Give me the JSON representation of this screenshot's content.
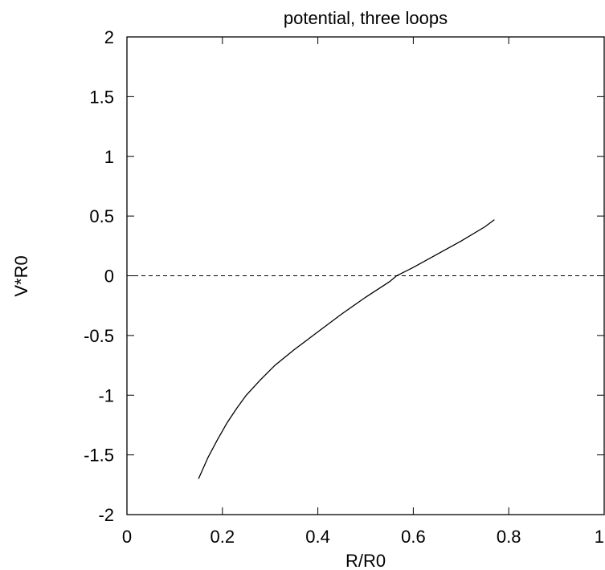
{
  "chart_data": {
    "type": "line",
    "title": "potential, three loops",
    "xlabel": "R/R0",
    "ylabel": "V*R0",
    "xlim": [
      0,
      1
    ],
    "ylim": [
      -2,
      2
    ],
    "x_ticks": [
      0,
      0.2,
      0.4,
      0.6,
      0.8,
      1
    ],
    "x_tick_labels": [
      "0",
      "0.2",
      "0.4",
      "0.6",
      "0.8",
      "1"
    ],
    "y_ticks": [
      -2,
      -1.5,
      -1,
      -0.5,
      0,
      0.5,
      1,
      1.5,
      2
    ],
    "y_tick_labels": [
      "-2",
      "-1.5",
      "-1",
      "-0.5",
      "0",
      "0.5",
      "1",
      "1.5",
      "2"
    ],
    "grid": false,
    "reference_line": {
      "y": 0,
      "style": "dashed"
    },
    "series": [
      {
        "x": [
          0.15,
          0.17,
          0.19,
          0.21,
          0.23,
          0.25,
          0.28,
          0.31,
          0.35,
          0.4,
          0.45,
          0.5,
          0.55,
          0.565,
          0.6,
          0.65,
          0.7,
          0.75,
          0.77
        ],
        "y": [
          -1.7,
          -1.52,
          -1.37,
          -1.23,
          -1.11,
          -1.0,
          -0.87,
          -0.75,
          -0.62,
          -0.47,
          -0.32,
          -0.18,
          -0.05,
          0.0,
          0.07,
          0.18,
          0.29,
          0.41,
          0.47
        ]
      }
    ]
  }
}
